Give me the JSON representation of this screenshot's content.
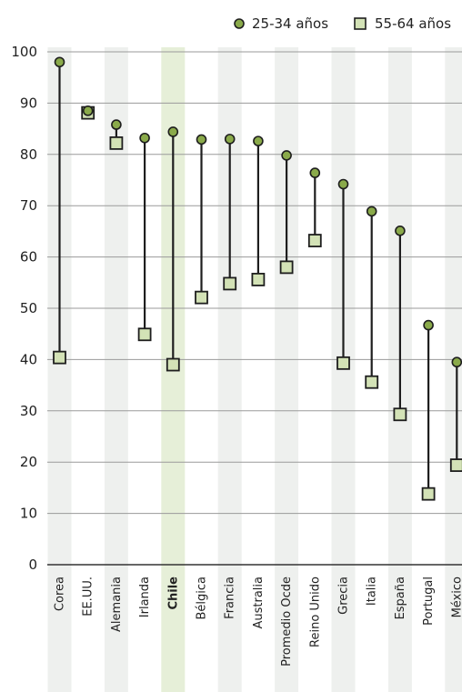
{
  "chart_data": {
    "type": "dot-range",
    "categories": [
      "Corea",
      "EE.UU.",
      "Alemania",
      "Irlanda",
      "Chile",
      "Bélgica",
      "Francia",
      "Australia",
      "Promedio Ocde",
      "Reino Unido",
      "Grecia",
      "Italia",
      "España",
      "Portugal",
      "México"
    ],
    "highlight": "Chile",
    "series": [
      {
        "name": "25-34 años",
        "marker": "circle",
        "values": [
          98,
          88.5,
          85.8,
          83.2,
          84.4,
          82.9,
          83.0,
          82.6,
          79.8,
          76.4,
          74.2,
          68.9,
          65.1,
          46.7,
          39.5
        ]
      },
      {
        "name": "55-64 años",
        "marker": "square",
        "values": [
          40.4,
          88.1,
          82.2,
          44.9,
          39.0,
          52.1,
          54.8,
          55.6,
          58.0,
          63.2,
          39.3,
          35.6,
          29.3,
          13.8,
          19.4
        ]
      }
    ],
    "ylim": [
      0,
      100
    ],
    "yticks": [
      0,
      10,
      20,
      30,
      40,
      50,
      60,
      70,
      80,
      90,
      100
    ],
    "grid": true,
    "legend_position": "top-right",
    "colors": {
      "circle_fill": "#8aaa4a",
      "square_fill": "#d3e2b6",
      "marker_stroke": "#1e1e1e",
      "column_band": "#eef0ee",
      "highlight_band": "#e6efd8",
      "grid": "#9a9a9a"
    }
  }
}
